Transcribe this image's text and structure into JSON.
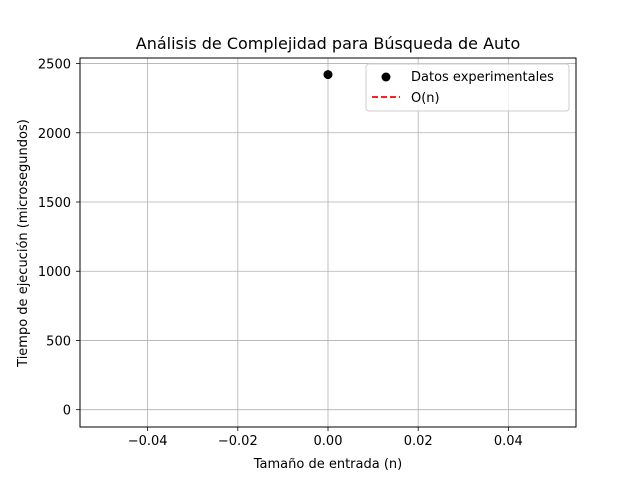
{
  "chart_data": {
    "type": "scatter",
    "title": "Análisis de Complejidad para Búsqueda de Auto",
    "xlabel": "Tamaño de entrada (n)",
    "ylabel": "Tiempo de ejecución (microsegundos)",
    "xlim": [
      -0.055,
      0.055
    ],
    "ylim": [
      -125,
      2540
    ],
    "x_ticks": [
      -0.04,
      -0.02,
      0.0,
      0.02,
      0.04
    ],
    "x_tick_labels": [
      "−0.04",
      "−0.02",
      "0.00",
      "0.02",
      "0.04"
    ],
    "y_ticks": [
      0,
      500,
      1000,
      1500,
      2000,
      2500
    ],
    "y_tick_labels": [
      "0",
      "500",
      "1000",
      "1500",
      "2000",
      "2500"
    ],
    "grid": true,
    "legend_position": "top-right",
    "series": [
      {
        "name": "Datos experimentales",
        "kind": "scatter",
        "color": "#000000",
        "points": [
          {
            "x": 0.0,
            "y": 2420
          }
        ]
      },
      {
        "name": "O(n)",
        "kind": "line",
        "style": "dashed",
        "color": "#ff0000",
        "points": []
      }
    ]
  }
}
